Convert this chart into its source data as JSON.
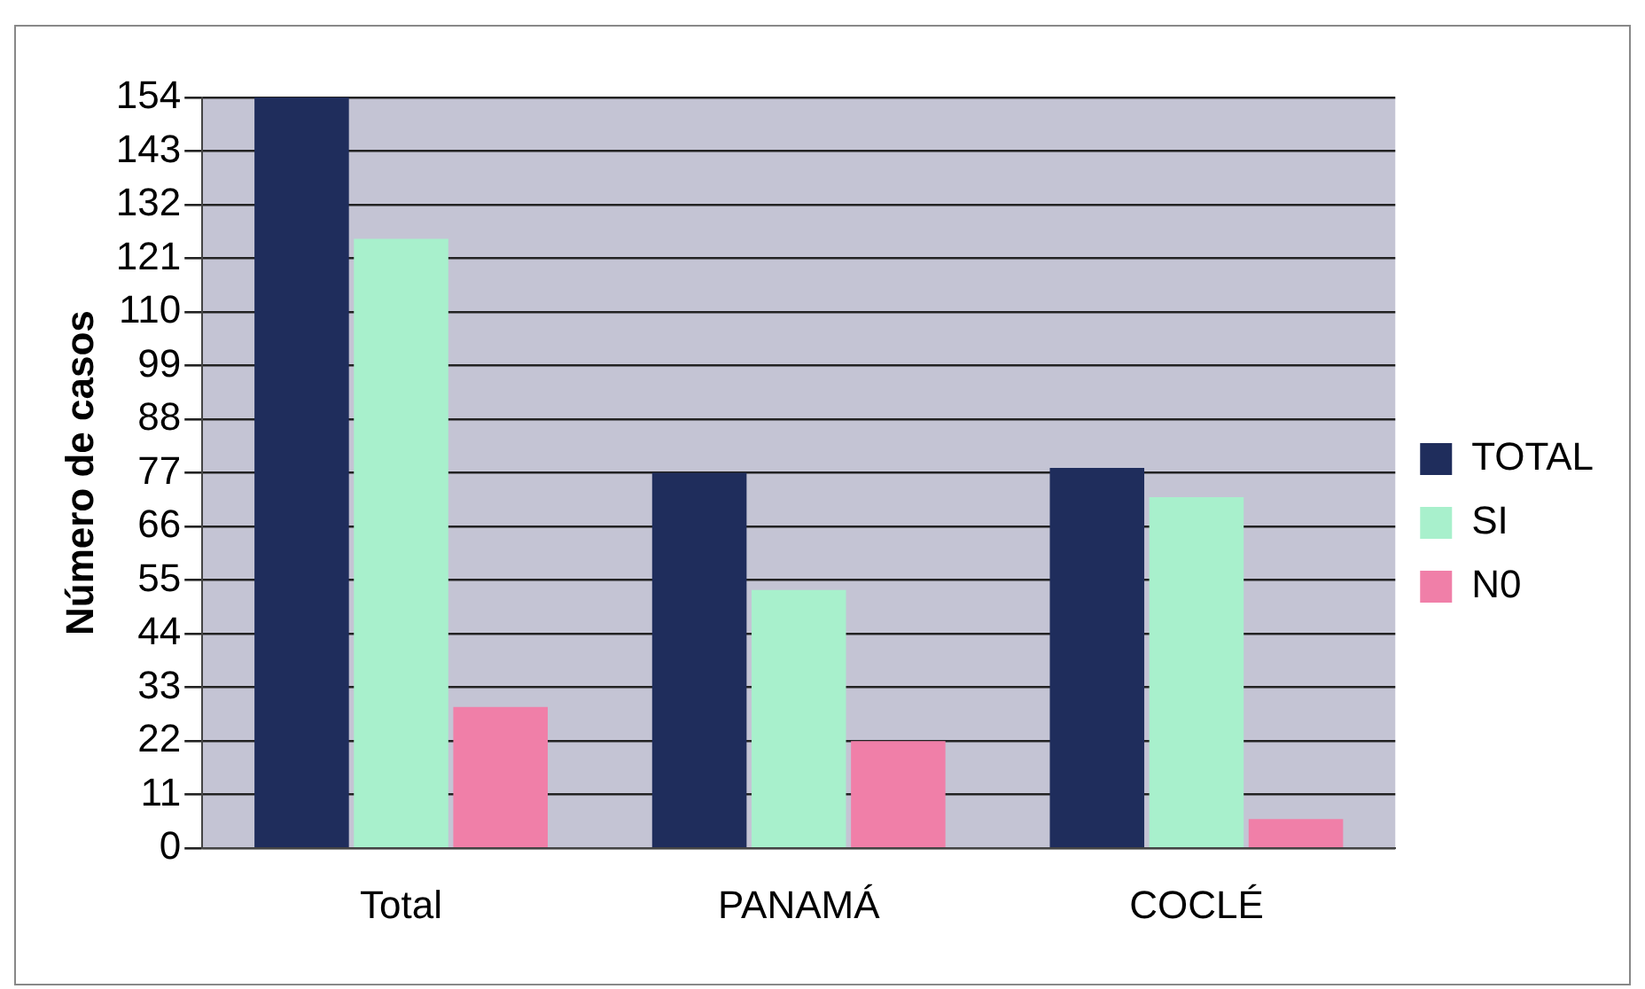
{
  "chart_data": {
    "type": "bar",
    "ylabel": "Número de casos",
    "categories": [
      "Total",
      "PANAMÁ",
      "COCLÉ"
    ],
    "series": [
      {
        "name": "TOTAL",
        "color": "#1f2d5c",
        "values": [
          154,
          77,
          78
        ]
      },
      {
        "name": "SI",
        "color": "#a8f0cc",
        "values": [
          125,
          53,
          72
        ]
      },
      {
        "name": "N0",
        "color": "#f07fa8",
        "values": [
          29,
          22,
          6
        ]
      }
    ],
    "ylim": [
      0,
      154
    ],
    "yticks": [
      0,
      11,
      22,
      33,
      44,
      55,
      66,
      77,
      88,
      99,
      110,
      121,
      132,
      143,
      154
    ],
    "grid": "y",
    "legend": "right"
  }
}
